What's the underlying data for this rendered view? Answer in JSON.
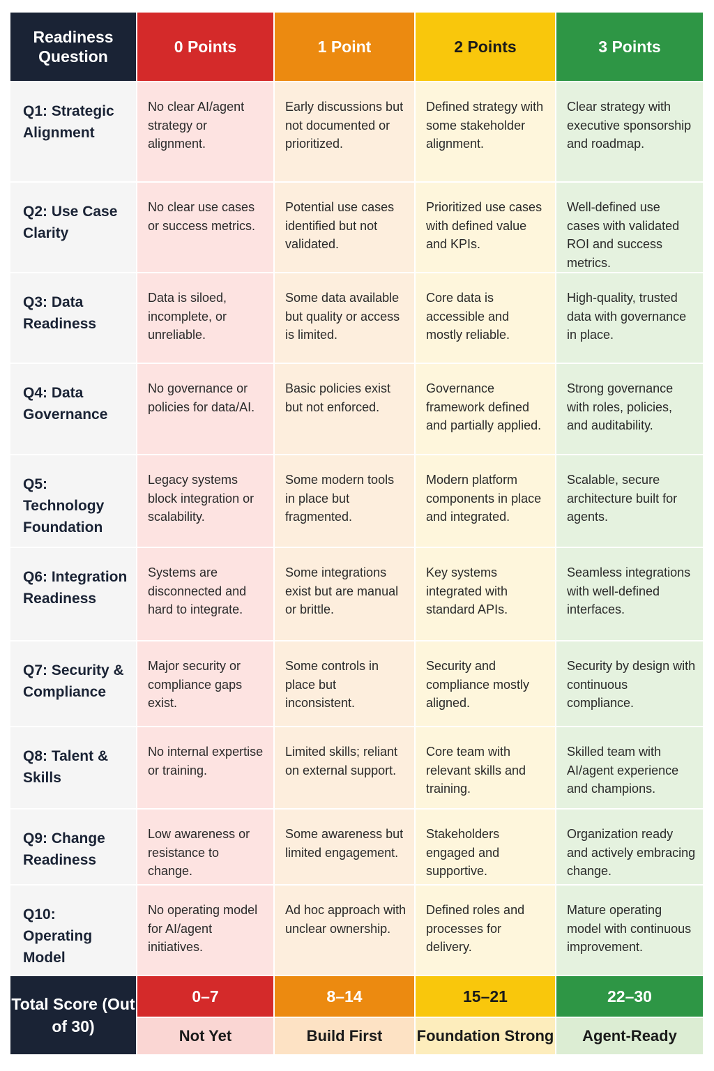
{
  "header": {
    "question_label": "Readiness Question",
    "columns": [
      "0 Points",
      "1 Point",
      "2 Points",
      "3 Points"
    ]
  },
  "rows": [
    {
      "question": "Q1: Strategic Alignment",
      "cells": [
        "No clear AI/agent strategy or alignment.",
        "Early discussions but not documented or prioritized.",
        "Defined strategy with some stakeholder alignment.",
        "Clear strategy with executive sponsorship and roadmap."
      ]
    },
    {
      "question": "Q2: Use Case Clarity",
      "cells": [
        "No clear use cases or success metrics.",
        "Potential use cases identified but not validated.",
        "Prioritized use cases with defined value and KPIs.",
        "Well-defined use cases with validated ROI and success metrics."
      ]
    },
    {
      "question": "Q3: Data Readiness",
      "cells": [
        "Data is siloed, incomplete, or unreliable.",
        "Some data available but quality or access is limited.",
        "Core data is accessible and mostly reliable.",
        "High-quality, trusted data with governance in place."
      ]
    },
    {
      "question": "Q4: Data Governance",
      "cells": [
        "No governance or policies for data/AI.",
        "Basic policies exist but not enforced.",
        "Governance framework defined and partially applied.",
        "Strong governance with roles, policies, and auditability."
      ]
    },
    {
      "question": "Q5: Technology Foundation",
      "cells": [
        "Legacy systems block integration or scalability.",
        "Some modern tools in place but fragmented.",
        "Modern platform components in place and integrated.",
        "Scalable, secure architecture built for agents."
      ]
    },
    {
      "question": "Q6: Integration Readiness",
      "cells": [
        "Systems are disconnected and hard to integrate.",
        "Some integrations exist but are manual or brittle.",
        "Key systems integrated with standard APIs.",
        "Seamless integrations with well-defined interfaces."
      ]
    },
    {
      "question": "Q7: Security & Compliance",
      "cells": [
        "Major security or compliance gaps exist.",
        "Some controls in place but inconsistent.",
        "Security and compliance mostly aligned.",
        "Security by design with continuous compliance."
      ]
    },
    {
      "question": "Q8: Talent & Skills",
      "cells": [
        "No internal expertise or training.",
        "Limited skills; reliant on external support.",
        "Core team with relevant skills and training.",
        "Skilled team with AI/agent experience and champions."
      ]
    },
    {
      "question": "Q9: Change Readiness",
      "cells": [
        "Low awareness or resistance to change.",
        "Some awareness but limited engagement.",
        "Stakeholders engaged and supportive.",
        "Organization ready and actively embracing change."
      ]
    },
    {
      "question": "Q10: Operating Model",
      "cells": [
        "No operating model for AI/agent initiatives.",
        "Ad hoc approach with unclear ownership.",
        "Defined roles and processes for delivery.",
        "Mature operating model with continuous improvement."
      ]
    }
  ],
  "footer": {
    "label": "Total Score (Out of 30)",
    "ranges": [
      "0–7",
      "8–14",
      "15–21",
      "22–30"
    ],
    "levels": [
      "Not Yet",
      "Build First",
      "Foundation Strong",
      "Agent-Ready"
    ]
  }
}
